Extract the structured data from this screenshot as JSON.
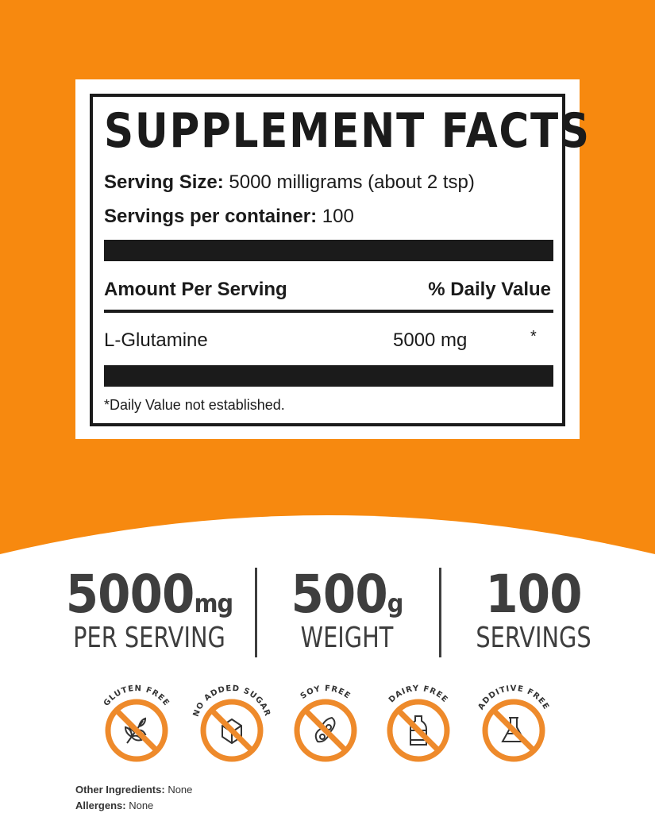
{
  "colors": {
    "orange": "#F7890F",
    "badge_orange": "#EE8A2B",
    "ink": "#1b1b1b",
    "stat_gray": "#3e3e3e"
  },
  "facts": {
    "title": "SUPPLEMENT FACTS",
    "serving_size_label": "Serving Size:",
    "serving_size_value": "5000 milligrams (about 2 tsp)",
    "servings_label": "Servings per container:",
    "servings_value": "100",
    "amount_header": "Amount Per Serving",
    "dv_header": "% Daily Value",
    "rows": [
      {
        "name": "L-Glutamine",
        "amount": "5000 mg",
        "dv": "*"
      }
    ],
    "footnote": "*Daily Value not established."
  },
  "stats": [
    {
      "value": "5000",
      "unit": "mg",
      "label": "PER SERVING"
    },
    {
      "value": "500",
      "unit": "g",
      "label": "WEIGHT"
    },
    {
      "value": "100",
      "unit": "",
      "label": "SERVINGS"
    }
  ],
  "badges": [
    {
      "label": "GLUTEN FREE",
      "icon": "wheat-icon"
    },
    {
      "label": "NO ADDED SUGAR",
      "icon": "sugar-cube-icon"
    },
    {
      "label": "SOY FREE",
      "icon": "soybean-icon"
    },
    {
      "label": "DAIRY FREE",
      "icon": "milk-bottle-icon"
    },
    {
      "label": "ADDITIVE FREE",
      "icon": "flask-icon"
    }
  ],
  "footer": {
    "other_label": "Other Ingredients:",
    "other_value": "None",
    "allergens_label": "Allergens:",
    "allergens_value": "None"
  }
}
